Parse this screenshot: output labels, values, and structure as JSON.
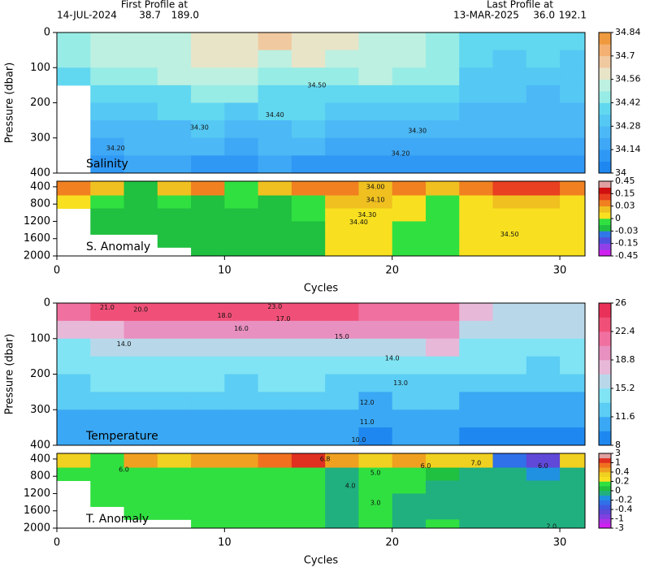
{
  "header": {
    "first_label": "First Profile at",
    "first_date": "14-JUL-2024",
    "first_lat": "38.7",
    "first_lon": "189.0",
    "last_label": "Last Profile at",
    "last_date": "13-MAR-2025",
    "last_lat": "36.0",
    "last_lon": "192.1"
  },
  "chart_data": [
    {
      "type": "heatmap",
      "ylabel": "Pressure (dbar)",
      "panel_label": "Salinity",
      "y_reversed": true,
      "x": [
        0,
        2,
        4,
        6,
        8,
        10,
        12,
        14,
        16,
        18,
        20,
        22,
        24,
        26,
        28,
        30
      ],
      "y": [
        0,
        50,
        100,
        150,
        200,
        250,
        300,
        350
      ],
      "xlim": [
        0,
        31.5
      ],
      "ylim": [
        0,
        400
      ],
      "yticks": [
        0,
        100,
        200,
        300,
        400
      ],
      "values": [
        [
          34.45,
          34.5,
          34.55,
          34.52,
          34.6,
          34.62,
          34.65,
          34.6,
          34.58,
          34.55,
          34.5,
          34.45,
          34.42,
          34.35,
          34.38,
          34.35
        ],
        [
          34.43,
          34.5,
          34.52,
          34.55,
          34.58,
          34.6,
          34.55,
          34.58,
          34.55,
          34.5,
          34.52,
          34.48,
          34.38,
          34.32,
          34.35,
          34.33
        ],
        [
          34.35,
          34.45,
          34.48,
          34.5,
          34.5,
          34.5,
          34.48,
          34.45,
          34.48,
          34.5,
          34.45,
          34.45,
          34.33,
          34.32,
          34.32,
          34.3
        ],
        [
          null,
          34.38,
          34.4,
          34.42,
          34.45,
          34.44,
          34.4,
          34.42,
          34.4,
          34.42,
          34.38,
          34.42,
          34.3,
          34.3,
          34.28,
          34.3
        ],
        [
          null,
          34.33,
          34.33,
          34.35,
          34.36,
          34.33,
          34.35,
          34.36,
          34.33,
          34.3,
          34.33,
          34.3,
          34.28,
          34.27,
          34.25,
          34.28
        ],
        [
          null,
          34.28,
          34.28,
          34.28,
          34.3,
          34.28,
          34.28,
          34.3,
          34.27,
          34.25,
          34.27,
          34.25,
          34.25,
          34.24,
          34.22,
          34.25
        ],
        [
          null,
          34.2,
          34.22,
          34.22,
          34.22,
          34.2,
          34.22,
          34.22,
          34.2,
          34.18,
          34.2,
          34.18,
          34.2,
          34.18,
          34.18,
          34.2
        ],
        [
          null,
          34.12,
          34.15,
          34.15,
          34.14,
          34.12,
          34.15,
          34.13,
          34.12,
          34.1,
          34.13,
          34.12,
          34.12,
          34.1,
          34.1,
          34.12
        ]
      ],
      "colorbar": {
        "ticks": [
          34,
          34.14,
          34.28,
          34.42,
          34.56,
          34.7,
          34.84
        ],
        "colors": [
          "#1e88f0",
          "#2f98f4",
          "#3fa8f6",
          "#4cb8f6",
          "#55c8f4",
          "#62d8f0",
          "#98ece6",
          "#bdf0e0",
          "#e8e4c8",
          "#f0c9a0",
          "#f4b072",
          "#f09a40"
        ]
      },
      "annotations": [
        {
          "text": "34.50",
          "x": 15.5,
          "y": 150
        },
        {
          "text": "34.40",
          "x": 13,
          "y": 235
        },
        {
          "text": "34.30",
          "x": 8.5,
          "y": 270
        },
        {
          "text": "34.30",
          "x": 21.5,
          "y": 280
        },
        {
          "text": "34.20",
          "x": 3.5,
          "y": 330
        },
        {
          "text": "34.20",
          "x": 20.5,
          "y": 345
        }
      ]
    },
    {
      "type": "heatmap",
      "xlabel": "Cycles",
      "panel_label": "S. Anomaly",
      "y_reversed": true,
      "x": [
        0,
        2,
        4,
        6,
        8,
        10,
        12,
        14,
        16,
        18,
        20,
        22,
        24,
        26,
        28,
        30
      ],
      "y": [
        270,
        600,
        900,
        1200,
        1500,
        1800
      ],
      "xlim": [
        0,
        31.5
      ],
      "ylim": [
        270,
        2000
      ],
      "xticks": [
        0,
        10,
        20,
        30
      ],
      "yticks": [
        400,
        800,
        1200,
        1600,
        2000
      ],
      "values": [
        [
          0.05,
          0.02,
          -0.02,
          0.02,
          0.04,
          -0.01,
          0.03,
          0.08,
          0.05,
          0.03,
          0.04,
          0.03,
          0.05,
          0.1,
          0.15,
          0.05
        ],
        [
          0.01,
          -0.01,
          -0.02,
          -0.01,
          -0.02,
          -0.01,
          -0.02,
          -0.01,
          0.02,
          0.02,
          0.01,
          -0.01,
          0.01,
          0.02,
          0.03,
          0.01
        ],
        [
          null,
          -0.02,
          -0.02,
          -0.02,
          -0.02,
          -0.02,
          -0.02,
          -0.01,
          0.01,
          0.01,
          0.01,
          -0.01,
          0.01,
          0.01,
          0.01,
          0.01
        ],
        [
          null,
          -0.02,
          -0.02,
          -0.02,
          -0.02,
          -0.02,
          -0.02,
          -0.02,
          0.01,
          0.01,
          -0.01,
          -0.01,
          0.01,
          0.01,
          0.01,
          0.01
        ],
        [
          null,
          null,
          null,
          -0.02,
          -0.02,
          -0.02,
          -0.02,
          -0.02,
          0.01,
          0.01,
          -0.01,
          -0.01,
          0.01,
          0.01,
          0.01,
          0.01
        ],
        [
          null,
          null,
          null,
          null,
          -0.02,
          -0.02,
          -0.02,
          -0.02,
          0.01,
          0.01,
          -0.01,
          -0.01,
          0.01,
          0.01,
          0.01,
          0.01
        ]
      ],
      "colorbar": {
        "ticks": [
          -0.45,
          -0.15,
          -0.03,
          0,
          0.03,
          0.15,
          0.45
        ],
        "colors": [
          "#d020f0",
          "#9040e8",
          "#5050e0",
          "#3078e8",
          "#20c040",
          "#30e040",
          "#f8e020",
          "#f0c020",
          "#f08020",
          "#e84020",
          "#d01010",
          "#e0a0a0"
        ]
      },
      "annotations": [
        {
          "text": "34.00",
          "x": 19,
          "y": 400
        },
        {
          "text": "34.10",
          "x": 19,
          "y": 700
        },
        {
          "text": "34.30",
          "x": 18.5,
          "y": 1050
        },
        {
          "text": "34.40",
          "x": 18,
          "y": 1220
        },
        {
          "text": "34.50",
          "x": 27,
          "y": 1500
        }
      ]
    },
    {
      "type": "heatmap",
      "ylabel": "Pressure (dbar)",
      "panel_label": "Temperature",
      "y_reversed": true,
      "x": [
        0,
        2,
        4,
        6,
        8,
        10,
        12,
        14,
        16,
        18,
        20,
        22,
        24,
        26,
        28,
        30
      ],
      "y": [
        0,
        50,
        100,
        150,
        200,
        250,
        300,
        350
      ],
      "xlim": [
        0,
        31.5
      ],
      "ylim": [
        0,
        400
      ],
      "yticks": [
        0,
        100,
        200,
        300,
        400
      ],
      "values": [
        [
          22,
          24,
          24,
          24,
          24,
          24,
          24,
          24,
          23,
          22,
          22,
          21,
          17,
          16,
          16,
          16
        ],
        [
          17,
          18,
          19,
          19,
          19,
          19,
          19,
          19,
          19,
          19,
          19,
          19,
          16,
          15.5,
          15.5,
          15.5
        ],
        [
          15,
          15.5,
          16,
          16,
          16.5,
          16,
          16,
          16.3,
          16,
          16,
          16,
          17,
          15,
          15,
          14.5,
          15
        ],
        [
          14,
          14.5,
          14.5,
          15,
          14.5,
          14.5,
          14.5,
          14.5,
          14.8,
          14.5,
          14,
          14.5,
          13.5,
          13.5,
          13,
          13.5
        ],
        [
          13,
          13.5,
          13.5,
          13.5,
          13.5,
          13,
          13.5,
          13.5,
          13,
          12.5,
          13,
          12.8,
          12.5,
          12.3,
          12,
          12.5
        ],
        [
          12.5,
          12.5,
          12.5,
          12.5,
          12.5,
          12,
          12,
          12.3,
          12,
          11.5,
          12,
          11.8,
          11.5,
          11.5,
          11,
          11.5
        ],
        [
          11.5,
          11.5,
          11.5,
          11.5,
          11.5,
          11,
          11,
          11.5,
          10.8,
          10.5,
          11,
          10.8,
          10.5,
          10.5,
          10,
          10.5
        ],
        [
          10.5,
          10.5,
          10.5,
          10.5,
          10.5,
          10,
          9.8,
          10.5,
          9.8,
          9.5,
          10,
          9.8,
          9.5,
          9.5,
          9,
          9.5
        ]
      ],
      "colorbar": {
        "ticks": [
          8,
          11.6,
          15.2,
          18.8,
          22.4,
          26
        ],
        "colors": [
          "#1e88f0",
          "#3aa8f4",
          "#5ccdf4",
          "#80e4f4",
          "#b8d8ea",
          "#e8b8d8",
          "#e890c0",
          "#f070a0",
          "#f05078",
          "#e83058"
        ]
      },
      "annotations": [
        {
          "text": "21.0",
          "x": 3,
          "y": 12
        },
        {
          "text": "20.0",
          "x": 5,
          "y": 18
        },
        {
          "text": "23.0",
          "x": 13,
          "y": 10
        },
        {
          "text": "18.0",
          "x": 10,
          "y": 35
        },
        {
          "text": "17.0",
          "x": 13.5,
          "y": 45
        },
        {
          "text": "16.0",
          "x": 11,
          "y": 72
        },
        {
          "text": "15.0",
          "x": 17,
          "y": 95
        },
        {
          "text": "14.0",
          "x": 4,
          "y": 115
        },
        {
          "text": "14.0",
          "x": 20,
          "y": 155
        },
        {
          "text": "13.0",
          "x": 20.5,
          "y": 225
        },
        {
          "text": "12.0",
          "x": 18.5,
          "y": 280
        },
        {
          "text": "11.0",
          "x": 18.5,
          "y": 335
        },
        {
          "text": "10.0",
          "x": 18,
          "y": 385
        }
      ]
    },
    {
      "type": "heatmap",
      "xlabel": "Cycles",
      "panel_label": "T. Anomaly",
      "y_reversed": true,
      "x": [
        0,
        2,
        4,
        6,
        8,
        10,
        12,
        14,
        16,
        18,
        20,
        22,
        24,
        26,
        28,
        30
      ],
      "y": [
        270,
        600,
        900,
        1200,
        1500,
        1800
      ],
      "xlim": [
        0,
        31.5
      ],
      "ylim": [
        270,
        2000
      ],
      "xticks": [
        0,
        10,
        20,
        30
      ],
      "yticks": [
        400,
        800,
        1200,
        1600,
        2000
      ],
      "values": [
        [
          0.3,
          0.2,
          0.5,
          0.3,
          0.6,
          0.5,
          0.8,
          1.2,
          0.5,
          0.3,
          0.5,
          0.3,
          0.4,
          -0.2,
          -0.5,
          0.3
        ],
        [
          0.1,
          0.15,
          0.1,
          0.1,
          0.15,
          0.1,
          0.1,
          0.15,
          -0.1,
          0.1,
          0.1,
          0.05,
          -0.1,
          -0.1,
          -0.15,
          -0.1
        ],
        [
          null,
          0.1,
          0.1,
          0.1,
          0.1,
          0.1,
          0.1,
          0.1,
          -0.1,
          0.1,
          0.1,
          -0.1,
          -0.1,
          -0.1,
          -0.1,
          -0.1
        ],
        [
          null,
          0.1,
          0.1,
          0.1,
          0.1,
          0.1,
          0.1,
          0.1,
          -0.1,
          0.1,
          -0.1,
          -0.1,
          -0.1,
          -0.1,
          -0.1,
          -0.1
        ],
        [
          null,
          null,
          0.1,
          0.1,
          0.1,
          0.1,
          0.1,
          0.1,
          -0.1,
          0.1,
          -0.1,
          -0.1,
          -0.1,
          -0.1,
          -0.1,
          -0.1
        ],
        [
          null,
          null,
          null,
          null,
          0.1,
          0.1,
          0.1,
          0.1,
          -0.1,
          0.1,
          -0.1,
          0.1,
          -0.1,
          -0.1,
          -0.1,
          -0.1
        ]
      ],
      "colorbar": {
        "ticks": [
          -3,
          -1,
          -0.4,
          -0.2,
          0,
          0.2,
          0.4,
          1,
          3
        ],
        "colors": [
          "#d020f0",
          "#b030e8",
          "#8040e0",
          "#6048d8",
          "#4058e0",
          "#3070e8",
          "#2090e0",
          "#20b080",
          "#20c040",
          "#30e040",
          "#f8e020",
          "#f0d020",
          "#f0a020",
          "#f07020",
          "#e03020",
          "#e0a0a0"
        ]
      },
      "annotations": [
        {
          "text": "6.0",
          "x": 4,
          "y": 650
        },
        {
          "text": "6.8",
          "x": 16,
          "y": 400
        },
        {
          "text": "5.0",
          "x": 19,
          "y": 720
        },
        {
          "text": "6.0",
          "x": 22,
          "y": 560
        },
        {
          "text": "7.0",
          "x": 25,
          "y": 500
        },
        {
          "text": "6.0",
          "x": 29,
          "y": 560
        },
        {
          "text": "4.0",
          "x": 17.5,
          "y": 1020
        },
        {
          "text": "3.0",
          "x": 19,
          "y": 1420
        },
        {
          "text": "2.0",
          "x": 29.5,
          "y": 1960
        }
      ]
    }
  ]
}
